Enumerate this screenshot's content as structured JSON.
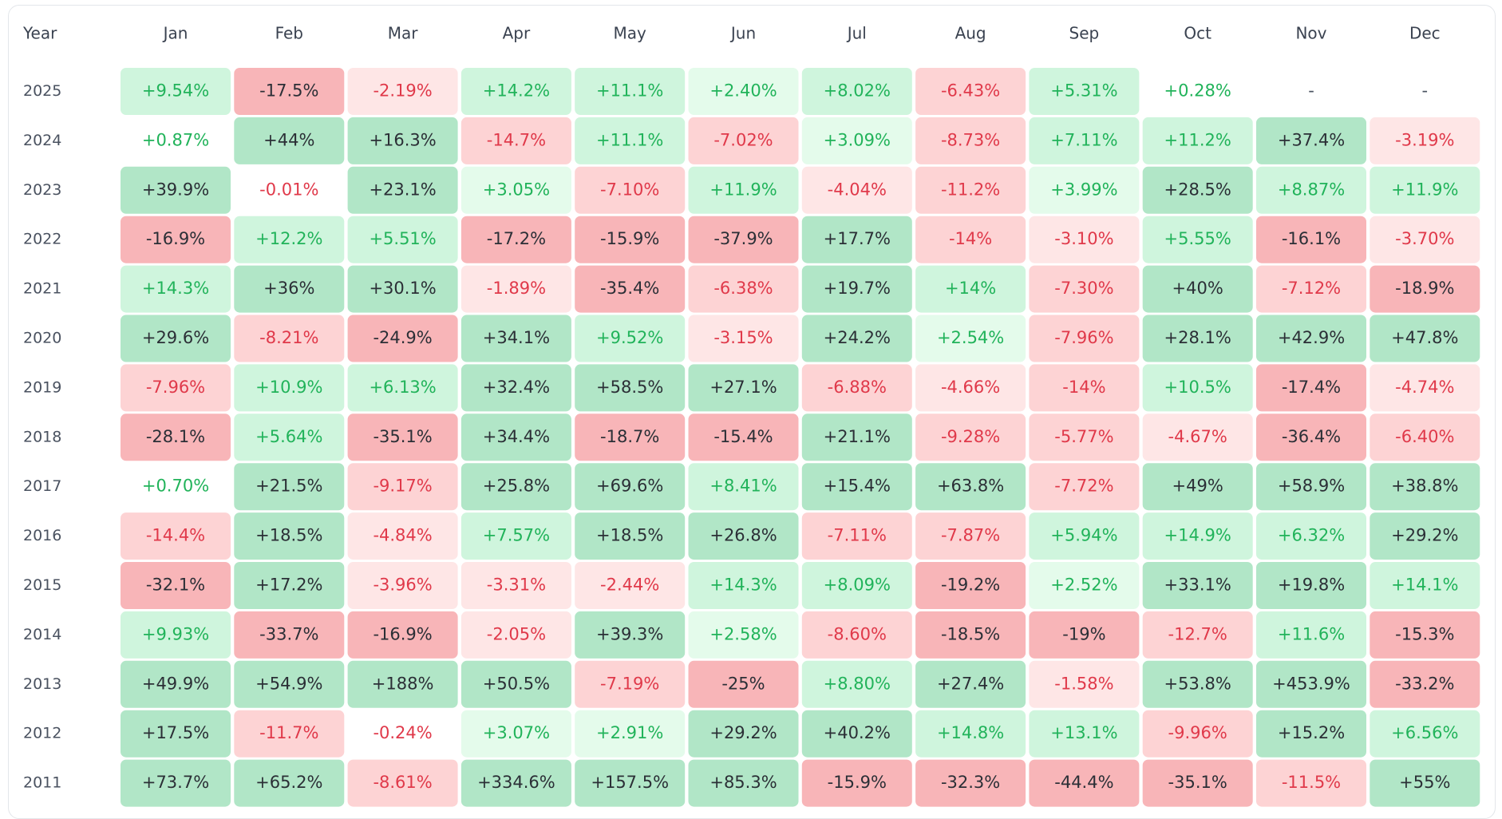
{
  "chart_data": {
    "type": "heatmap",
    "title": "",
    "row_header": "Year",
    "columns": [
      "Jan",
      "Feb",
      "Mar",
      "Apr",
      "May",
      "Jun",
      "Jul",
      "Aug",
      "Sep",
      "Oct",
      "Nov",
      "Dec"
    ],
    "rows": [
      {
        "year": "2025",
        "values": [
          "+9.54%",
          "-17.5%",
          "-2.19%",
          "+14.2%",
          "+11.1%",
          "+2.40%",
          "+8.02%",
          "-6.43%",
          "+5.31%",
          "+0.28%",
          "-",
          "-"
        ]
      },
      {
        "year": "2024",
        "values": [
          "+0.87%",
          "+44%",
          "+16.3%",
          "-14.7%",
          "+11.1%",
          "-7.02%",
          "+3.09%",
          "-8.73%",
          "+7.11%",
          "+11.2%",
          "+37.4%",
          "-3.19%"
        ]
      },
      {
        "year": "2023",
        "values": [
          "+39.9%",
          "-0.01%",
          "+23.1%",
          "+3.05%",
          "-7.10%",
          "+11.9%",
          "-4.04%",
          "-11.2%",
          "+3.99%",
          "+28.5%",
          "+8.87%",
          "+11.9%"
        ]
      },
      {
        "year": "2022",
        "values": [
          "-16.9%",
          "+12.2%",
          "+5.51%",
          "-17.2%",
          "-15.9%",
          "-37.9%",
          "+17.7%",
          "-14%",
          "-3.10%",
          "+5.55%",
          "-16.1%",
          "-3.70%"
        ]
      },
      {
        "year": "2021",
        "values": [
          "+14.3%",
          "+36%",
          "+30.1%",
          "-1.89%",
          "-35.4%",
          "-6.38%",
          "+19.7%",
          "+14%",
          "-7.30%",
          "+40%",
          "-7.12%",
          "-18.9%"
        ]
      },
      {
        "year": "2020",
        "values": [
          "+29.6%",
          "-8.21%",
          "-24.9%",
          "+34.1%",
          "+9.52%",
          "-3.15%",
          "+24.2%",
          "+2.54%",
          "-7.96%",
          "+28.1%",
          "+42.9%",
          "+47.8%"
        ]
      },
      {
        "year": "2019",
        "values": [
          "-7.96%",
          "+10.9%",
          "+6.13%",
          "+32.4%",
          "+58.5%",
          "+27.1%",
          "-6.88%",
          "-4.66%",
          "-14%",
          "+10.5%",
          "-17.4%",
          "-4.74%"
        ]
      },
      {
        "year": "2018",
        "values": [
          "-28.1%",
          "+5.64%",
          "-35.1%",
          "+34.4%",
          "-18.7%",
          "-15.4%",
          "+21.1%",
          "-9.28%",
          "-5.77%",
          "-4.67%",
          "-36.4%",
          "-6.40%"
        ]
      },
      {
        "year": "2017",
        "values": [
          "+0.70%",
          "+21.5%",
          "-9.17%",
          "+25.8%",
          "+69.6%",
          "+8.41%",
          "+15.4%",
          "+63.8%",
          "-7.72%",
          "+49%",
          "+58.9%",
          "+38.8%"
        ]
      },
      {
        "year": "2016",
        "values": [
          "-14.4%",
          "+18.5%",
          "-4.84%",
          "+7.57%",
          "+18.5%",
          "+26.8%",
          "-7.11%",
          "-7.87%",
          "+5.94%",
          "+14.9%",
          "+6.32%",
          "+29.2%"
        ]
      },
      {
        "year": "2015",
        "values": [
          "-32.1%",
          "+17.2%",
          "-3.96%",
          "-3.31%",
          "-2.44%",
          "+14.3%",
          "+8.09%",
          "-19.2%",
          "+2.52%",
          "+33.1%",
          "+19.8%",
          "+14.1%"
        ]
      },
      {
        "year": "2014",
        "values": [
          "+9.93%",
          "-33.7%",
          "-16.9%",
          "-2.05%",
          "+39.3%",
          "+2.58%",
          "-8.60%",
          "-18.5%",
          "-19%",
          "-12.7%",
          "+11.6%",
          "-15.3%"
        ]
      },
      {
        "year": "2013",
        "values": [
          "+49.9%",
          "+54.9%",
          "+188%",
          "+50.5%",
          "-7.19%",
          "-25%",
          "+8.80%",
          "+27.4%",
          "-1.58%",
          "+53.8%",
          "+453.9%",
          "-33.2%"
        ]
      },
      {
        "year": "2012",
        "values": [
          "+17.5%",
          "-11.7%",
          "-0.24%",
          "+3.07%",
          "+2.91%",
          "+29.2%",
          "+40.2%",
          "+14.8%",
          "+13.1%",
          "-9.96%",
          "+15.2%",
          "+6.56%"
        ]
      },
      {
        "year": "2011",
        "values": [
          "+73.7%",
          "+65.2%",
          "-8.61%",
          "+334.6%",
          "+157.5%",
          "+85.3%",
          "-15.9%",
          "-32.3%",
          "-44.4%",
          "-35.1%",
          "-11.5%",
          "+55%"
        ]
      }
    ],
    "colors": {
      "pos_strong_bg": "#b1e6c7",
      "pos_strong_text": "#2b2f36",
      "pos_mid_bg": "#cff5dd",
      "pos_light_bg": "#e4fbeb",
      "pos_text": "#21b35a",
      "neg_strong_bg": "#f8b5b8",
      "neg_strong_text": "#2b2f36",
      "neg_mid_bg": "#fdd3d4",
      "neg_light_bg": "#fee6e6",
      "neg_text": "#e0394a",
      "neutral_text": "#4a5260"
    }
  }
}
